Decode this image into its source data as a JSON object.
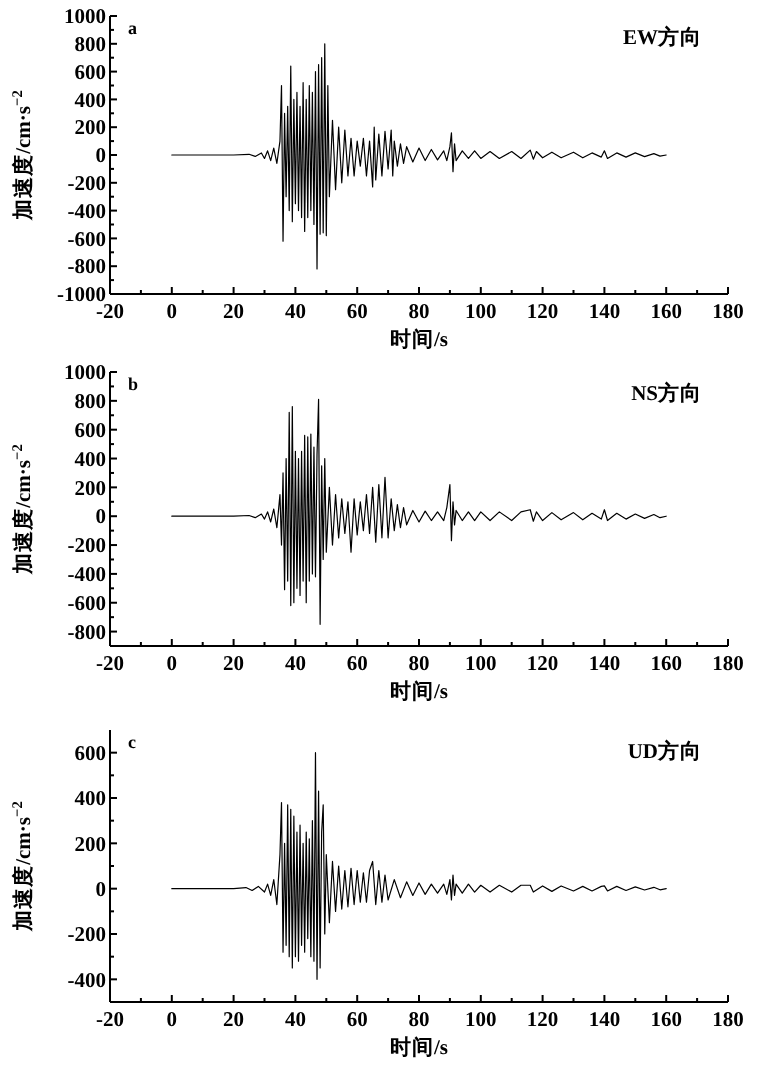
{
  "chart_data": [
    {
      "type": "line",
      "xlabel": "时间/s",
      "ylabel": "加速度/cm·s$^{−2}$",
      "annotations": [
        "a",
        "EW方向"
      ],
      "xlim": [
        -20,
        180
      ],
      "ylim": [
        -1000,
        1000
      ],
      "xticks": [
        -20,
        {
          "value": -10,
          "label": null
        },
        0,
        {
          "value": 10,
          "label": null
        },
        20,
        {
          "value": 30,
          "label": null
        },
        40,
        {
          "value": 50,
          "label": null
        },
        60,
        {
          "value": 70,
          "label": null
        },
        80,
        {
          "value": 90,
          "label": null
        },
        100,
        {
          "value": 110,
          "label": null
        },
        120,
        {
          "value": 130,
          "label": null
        },
        140,
        {
          "value": 150,
          "label": null
        },
        160,
        {
          "value": 170,
          "label": null
        },
        180
      ],
      "yticks": [
        -1000,
        {
          "value": -900,
          "label": null
        },
        -800,
        {
          "value": -700,
          "label": null
        },
        -600,
        {
          "value": -500,
          "label": null
        },
        -400,
        {
          "value": -300,
          "label": null
        },
        -200,
        {
          "value": -100,
          "label": null
        },
        0,
        {
          "value": 100,
          "label": null
        },
        200,
        {
          "value": 300,
          "label": null
        },
        400,
        {
          "value": 500,
          "label": null
        },
        600,
        {
          "value": 700,
          "label": null
        },
        800,
        {
          "value": 900,
          "label": null
        },
        1000
      ],
      "series": [
        {
          "color": "#000000",
          "x": [
            0,
            20,
            25,
            27,
            29,
            30,
            31,
            32,
            33,
            34,
            35,
            35.5,
            36,
            36.5,
            37,
            37.5,
            38,
            38.5,
            39,
            39.5,
            40,
            40.5,
            41,
            41.5,
            42,
            42.5,
            43,
            43.5,
            44,
            44.5,
            45,
            45.5,
            46,
            46.5,
            47,
            47.5,
            48,
            48.5,
            49,
            49.5,
            50,
            50.5,
            51,
            52,
            53,
            54,
            55,
            56,
            57,
            58,
            59,
            60,
            61,
            62,
            63,
            64,
            65,
            65.5,
            66,
            67,
            68,
            69,
            70,
            71,
            71.5,
            72,
            73,
            74,
            75,
            76,
            78,
            80,
            82,
            84,
            86,
            88,
            89,
            90,
            90.5,
            91,
            91.5,
            92,
            94,
            96,
            98,
            100,
            103,
            106,
            110,
            113,
            116,
            117,
            118,
            120,
            123,
            126,
            130,
            133,
            136,
            139,
            140,
            141,
            144,
            147,
            150,
            153,
            156,
            158,
            160
          ],
          "values": [
            0,
            0,
            5,
            -10,
            15,
            -25,
            30,
            -40,
            50,
            -60,
            100,
            500,
            -620,
            300,
            -300,
            350,
            -400,
            640,
            -480,
            400,
            -350,
            450,
            -400,
            350,
            -450,
            520,
            -550,
            400,
            -450,
            500,
            -400,
            450,
            -500,
            600,
            -820,
            650,
            -570,
            700,
            -560,
            800,
            -580,
            500,
            -300,
            250,
            -250,
            200,
            -200,
            180,
            -150,
            120,
            -150,
            100,
            -80,
            120,
            -150,
            100,
            -230,
            200,
            -180,
            150,
            -150,
            170,
            -100,
            180,
            -150,
            100,
            -80,
            80,
            -60,
            60,
            -50,
            50,
            -40,
            40,
            -35,
            30,
            -40,
            60,
            160,
            -120,
            80,
            -40,
            30,
            -25,
            30,
            -25,
            25,
            -25,
            25,
            -25,
            35,
            -30,
            25,
            -20,
            20,
            -20,
            20,
            -20,
            15,
            -15,
            30,
            -25,
            15,
            -15,
            15,
            -12,
            10,
            -8,
            0
          ]
        }
      ]
    },
    {
      "type": "line",
      "xlabel": "时间/s",
      "ylabel": "加速度/cm·s$^{−2}$",
      "annotations": [
        "b",
        "NS方向"
      ],
      "xlim": [
        -20,
        180
      ],
      "ylim": [
        -900,
        1000
      ],
      "xticks": [
        -20,
        {
          "value": -10,
          "label": null
        },
        0,
        {
          "value": 10,
          "label": null
        },
        20,
        {
          "value": 30,
          "label": null
        },
        40,
        {
          "value": 50,
          "label": null
        },
        60,
        {
          "value": 70,
          "label": null
        },
        80,
        {
          "value": 90,
          "label": null
        },
        100,
        {
          "value": 110,
          "label": null
        },
        120,
        {
          "value": 130,
          "label": null
        },
        140,
        {
          "value": 150,
          "label": null
        },
        160,
        {
          "value": 170,
          "label": null
        },
        180
      ],
      "yticks": [
        -800,
        {
          "value": -700,
          "label": null
        },
        -600,
        {
          "value": -500,
          "label": null
        },
        -400,
        {
          "value": -300,
          "label": null
        },
        -200,
        {
          "value": -100,
          "label": null
        },
        0,
        {
          "value": 100,
          "label": null
        },
        200,
        {
          "value": 300,
          "label": null
        },
        400,
        {
          "value": 500,
          "label": null
        },
        600,
        {
          "value": 700,
          "label": null
        },
        800,
        {
          "value": 900,
          "label": null
        },
        1000
      ],
      "series": [
        {
          "color": "#000000",
          "x": [
            0,
            20,
            25,
            27,
            29,
            30,
            31,
            32,
            33,
            34,
            35,
            35.5,
            36,
            36.5,
            37,
            37.5,
            38,
            38.5,
            39,
            39.5,
            40,
            40.5,
            41,
            41.5,
            42,
            42.5,
            43,
            43.5,
            44,
            44.5,
            45,
            45.5,
            46,
            46.5,
            47,
            47.5,
            48,
            48.5,
            49,
            49.5,
            50,
            51,
            52,
            53,
            54,
            55,
            56,
            57,
            58,
            59,
            60,
            61,
            62,
            63,
            64,
            65,
            66,
            67,
            68,
            69,
            70,
            71,
            72,
            73,
            74,
            75,
            76,
            78,
            80,
            82,
            84,
            86,
            88,
            89,
            90,
            90.5,
            91,
            91.5,
            92,
            94,
            96,
            98,
            100,
            103,
            106,
            110,
            113,
            116,
            117,
            118,
            120,
            123,
            126,
            130,
            133,
            136,
            139,
            140,
            141,
            144,
            147,
            150,
            153,
            156,
            158,
            160
          ],
          "values": [
            0,
            0,
            5,
            -10,
            15,
            -20,
            30,
            -40,
            50,
            -80,
            150,
            -200,
            300,
            -510,
            400,
            -450,
            720,
            -620,
            760,
            -600,
            450,
            -500,
            400,
            -550,
            450,
            -450,
            560,
            -600,
            550,
            -450,
            570,
            -400,
            480,
            -420,
            430,
            810,
            -750,
            350,
            -300,
            400,
            -250,
            200,
            -200,
            150,
            -150,
            120,
            -120,
            100,
            -250,
            120,
            -130,
            100,
            -100,
            150,
            -120,
            200,
            -180,
            220,
            -150,
            270,
            -150,
            120,
            -100,
            80,
            -80,
            60,
            -60,
            40,
            -40,
            35,
            -30,
            30,
            -30,
            60,
            220,
            -170,
            100,
            -60,
            40,
            -30,
            30,
            -30,
            30,
            -30,
            30,
            -30,
            30,
            45,
            -35,
            30,
            -30,
            25,
            -25,
            25,
            -25,
            20,
            -20,
            45,
            -30,
            20,
            -20,
            15,
            -15,
            12,
            -10,
            0
          ]
        }
      ]
    },
    {
      "type": "line",
      "xlabel": "时间/s",
      "ylabel": "加速度/cm·s$^{−2}$",
      "annotations": [
        "c",
        "UD方向"
      ],
      "xlim": [
        -20,
        180
      ],
      "ylim": [
        -500,
        700
      ],
      "xticks": [
        -20,
        {
          "value": -10,
          "label": null
        },
        0,
        {
          "value": 10,
          "label": null
        },
        20,
        {
          "value": 30,
          "label": null
        },
        40,
        {
          "value": 50,
          "label": null
        },
        60,
        {
          "value": 70,
          "label": null
        },
        80,
        {
          "value": 90,
          "label": null
        },
        100,
        {
          "value": 110,
          "label": null
        },
        120,
        {
          "value": 130,
          "label": null
        },
        140,
        {
          "value": 150,
          "label": null
        },
        160,
        {
          "value": 170,
          "label": null
        },
        180
      ],
      "yticks": [
        -400,
        {
          "value": -300,
          "label": null
        },
        -200,
        {
          "value": -100,
          "label": null
        },
        0,
        {
          "value": 100,
          "label": null
        },
        200,
        {
          "value": 300,
          "label": null
        },
        400,
        {
          "value": 500,
          "label": null
        },
        600
      ],
      "series": [
        {
          "color": "#000000",
          "x": [
            0,
            20,
            24,
            26,
            28,
            30,
            31,
            32,
            33,
            34,
            35,
            35.5,
            36,
            36.5,
            37,
            37.5,
            38,
            38.5,
            39,
            39.5,
            40,
            40.5,
            41,
            41.5,
            42,
            42.5,
            43,
            43.5,
            44,
            44.5,
            45,
            45.5,
            46,
            46.5,
            47,
            47.5,
            48,
            48.5,
            49,
            49.5,
            50,
            51,
            52,
            53,
            54,
            55,
            56,
            57,
            58,
            59,
            60,
            61,
            62,
            63,
            64,
            65,
            66,
            67,
            68,
            69,
            70,
            72,
            74,
            76,
            78,
            80,
            82,
            84,
            86,
            88,
            89,
            90,
            90.5,
            91,
            91.5,
            92,
            94,
            96,
            98,
            100,
            103,
            106,
            110,
            113,
            116,
            117,
            120,
            123,
            126,
            130,
            133,
            136,
            139,
            140,
            141,
            144,
            147,
            150,
            153,
            156,
            158,
            160
          ],
          "values": [
            0,
            0,
            5,
            -8,
            10,
            -15,
            20,
            -30,
            40,
            -70,
            150,
            380,
            -280,
            200,
            -250,
            370,
            -300,
            350,
            -350,
            320,
            -300,
            250,
            -320,
            280,
            -250,
            200,
            -280,
            250,
            -220,
            220,
            -300,
            300,
            -320,
            600,
            -400,
            430,
            -350,
            250,
            370,
            -200,
            150,
            -150,
            120,
            -100,
            100,
            -90,
            80,
            -80,
            90,
            -70,
            80,
            -60,
            70,
            -60,
            80,
            120,
            -70,
            80,
            -60,
            60,
            -50,
            40,
            -40,
            30,
            -30,
            25,
            -25,
            20,
            -20,
            20,
            -25,
            40,
            -50,
            60,
            -30,
            20,
            -20,
            20,
            -15,
            15,
            -15,
            15,
            -15,
            15,
            15,
            -15,
            12,
            -12,
            12,
            -10,
            10,
            -10,
            10,
            12,
            -10,
            10,
            -8,
            8,
            -6,
            6,
            -5,
            0
          ]
        }
      ]
    }
  ]
}
